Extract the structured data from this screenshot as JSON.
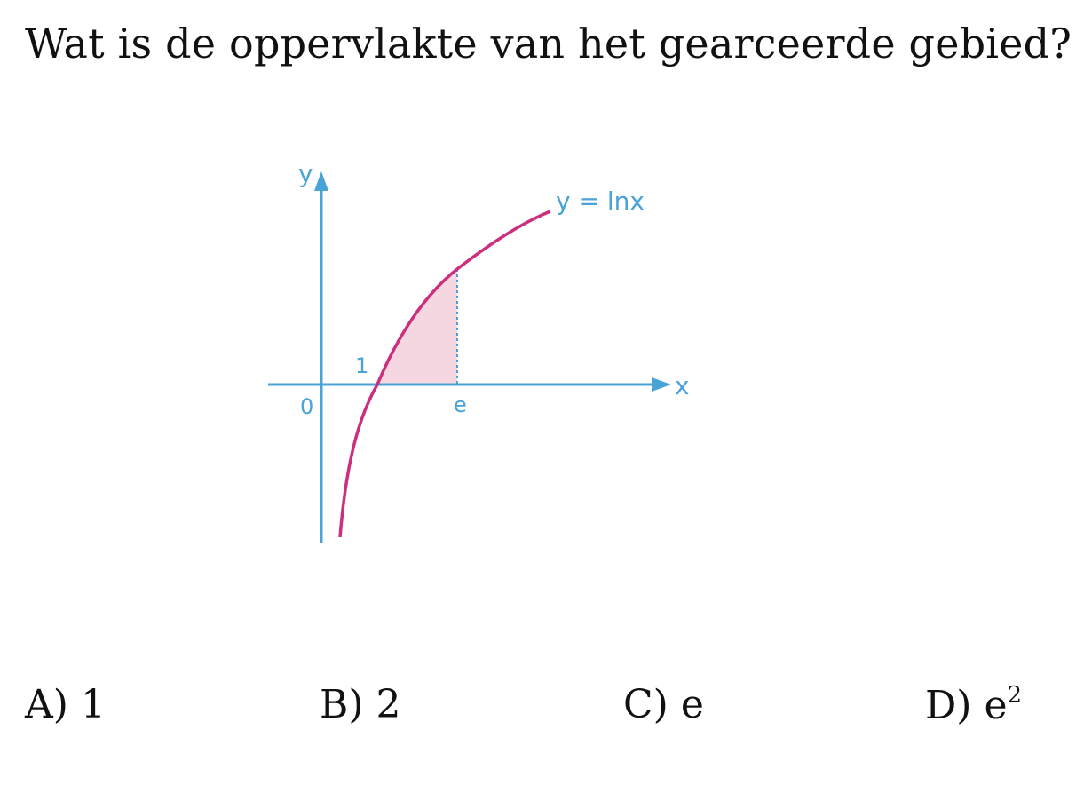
{
  "question": "Wat is de oppervlakte van het gearceerde gebied?",
  "diagram": {
    "function_label": "y = lnx",
    "x_axis_label": "x",
    "y_axis_label": "y",
    "origin_label": "0",
    "x_tick_one": "1",
    "x_tick_e": "e",
    "colors": {
      "axis": "#4aa3d6",
      "curve": "#cc2f7e",
      "shaded": "#f5d7e1",
      "label": "#4aa3d6"
    }
  },
  "answers": [
    {
      "letter": "A)",
      "value": "1"
    },
    {
      "letter": "B)",
      "value": "2"
    },
    {
      "letter": "C)",
      "value": "e"
    },
    {
      "letter": "D)",
      "value": "e",
      "superscript": "2"
    }
  ]
}
